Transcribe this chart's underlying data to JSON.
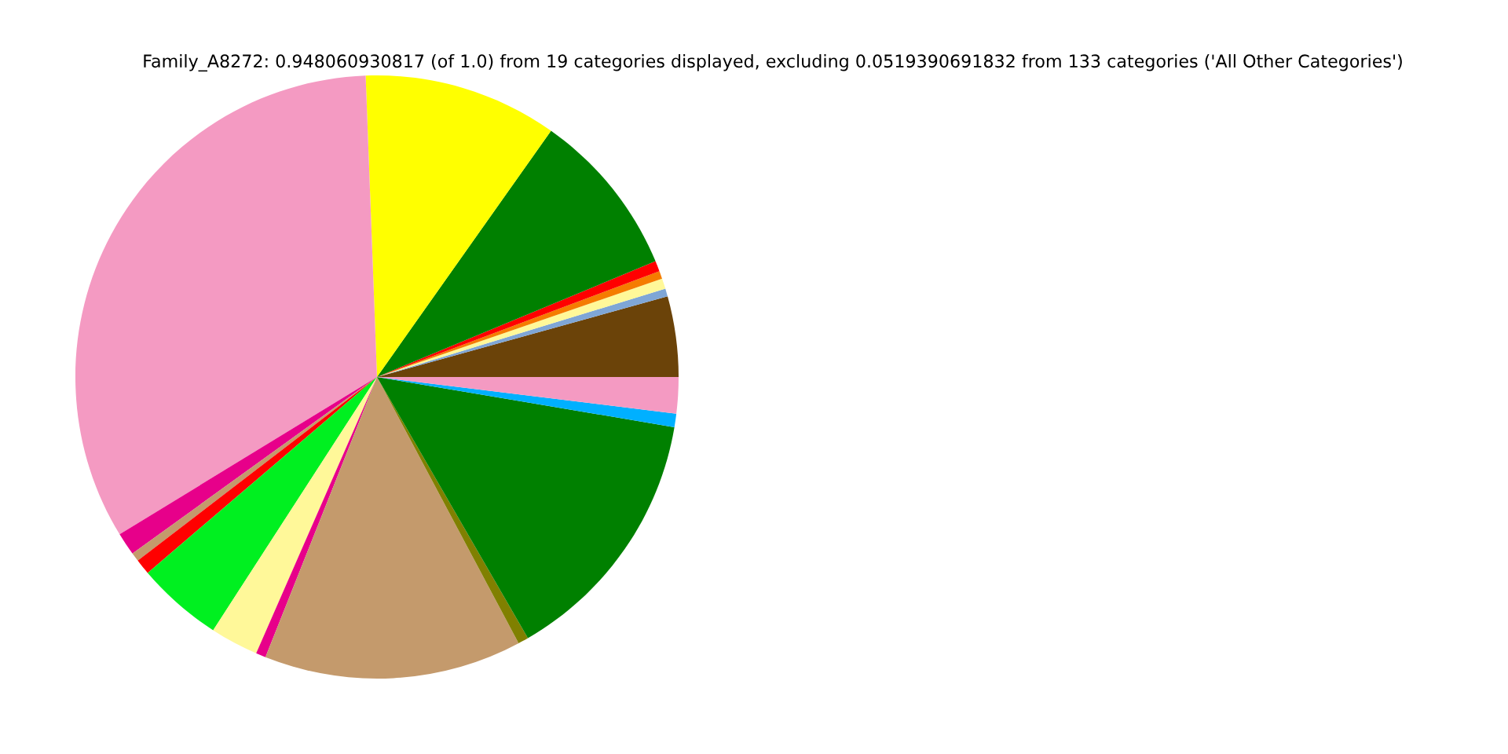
{
  "chart_data": {
    "type": "pie",
    "title": "Family_A8272: 0.948060930817 (of 1.0) from 19 categories displayed, excluding 0.0519390691832 from 133 categories ('All Other Categories')",
    "categories": [
      null,
      null,
      null,
      null,
      null,
      null,
      null,
      null,
      null,
      null,
      null,
      null,
      null,
      null,
      null,
      null,
      null,
      null,
      null
    ],
    "values": [
      4.31,
      0.42,
      0.56,
      0.42,
      0.56,
      8.94,
      10.39,
      33.13,
      1.22,
      0.47,
      0.83,
      4.61,
      2.58,
      0.53,
      13.81,
      0.56,
      14.0,
      0.72,
      1.94
    ],
    "colors": [
      "#6b4309",
      "#7fa6d6",
      "#fff899",
      "#f57c00",
      "#ff0000",
      "#008000",
      "#ffff00",
      "#f49ac2",
      "#e7008a",
      "#c49a6c",
      "#ff0000",
      "#00f020",
      "#fff899",
      "#e7008a",
      "#c49a6c",
      "#808000",
      "#008000",
      "#00b0ff",
      "#f49ac2"
    ]
  }
}
